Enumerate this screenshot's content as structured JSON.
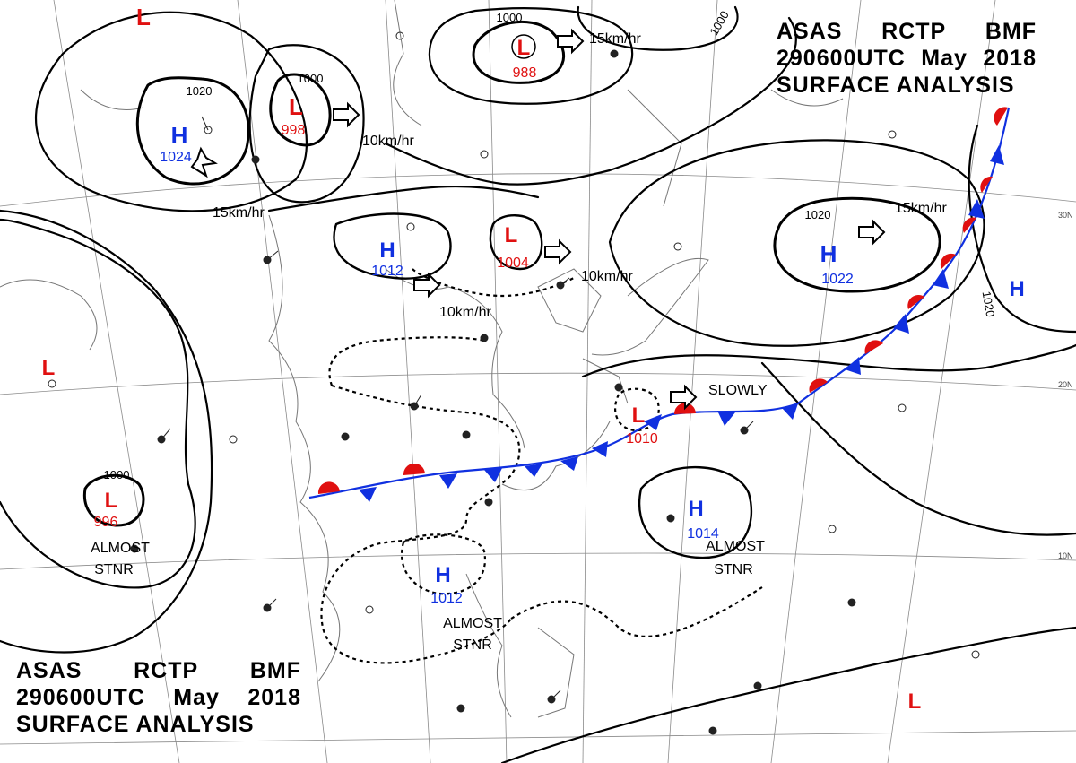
{
  "header": {
    "line1": [
      "ASAS",
      "RCTP",
      "BMF"
    ],
    "line2": [
      "290600UTC",
      "May",
      "2018"
    ],
    "line3": "SURFACE ANALYSIS"
  },
  "colors": {
    "high": "#1030e0",
    "low": "#e01010",
    "isobar": "#000000",
    "coast": "#777777",
    "grid": "#888888"
  },
  "lat_labels": [
    "30N",
    "20N",
    "10N"
  ],
  "pressure_systems": [
    {
      "type": "H",
      "value": "1024"
    },
    {
      "type": "L",
      "value": "998"
    },
    {
      "type": "L",
      "value": "988"
    },
    {
      "type": "L",
      "value": ""
    },
    {
      "type": "H",
      "value": "1012"
    },
    {
      "type": "L",
      "value": "1004"
    },
    {
      "type": "H",
      "value": "1022"
    },
    {
      "type": "H",
      "value": ""
    },
    {
      "type": "L",
      "value": ""
    },
    {
      "type": "L",
      "value": "996"
    },
    {
      "type": "L",
      "value": "1010"
    },
    {
      "type": "H",
      "value": "1014"
    },
    {
      "type": "H",
      "value": "1012"
    },
    {
      "type": "L",
      "value": ""
    }
  ],
  "isobar_labels": [
    "1020",
    "1000",
    "1000",
    "1000",
    "1020",
    "1020",
    "1000"
  ],
  "motion_labels": [
    "15km/hr",
    "10km/hr",
    "15km/hr",
    "10km/hr",
    "10km/hr",
    "15km/hr",
    "SLOWLY"
  ],
  "annotations": [
    "ALMOST",
    "STNR",
    "ALMOST",
    "STNR",
    "ALMOST",
    "STNR"
  ]
}
